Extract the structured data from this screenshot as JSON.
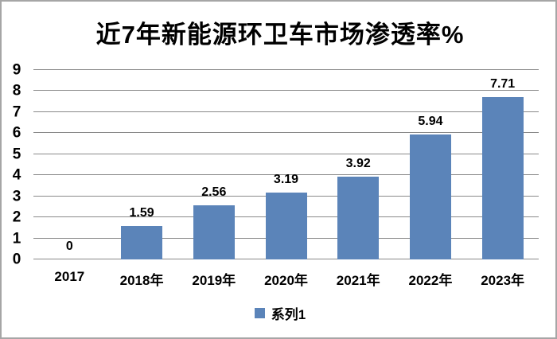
{
  "frame": {
    "border_color": "#a6a6a6",
    "background_color": "#ffffff"
  },
  "chart_data": {
    "type": "bar",
    "title": "近7年新能源环卫车市场渗透率%",
    "categories": [
      "2017",
      "2018年",
      "2019年",
      "2020年",
      "2021年",
      "2022年",
      "2023年"
    ],
    "series": [
      {
        "name": "系列1",
        "values": [
          0,
          1.59,
          2.56,
          3.19,
          3.92,
          5.94,
          7.71
        ]
      }
    ],
    "value_labels": [
      "0",
      "1.59",
      "2.56",
      "3.19",
      "3.92",
      "5.94",
      "7.71"
    ],
    "xlabel": "",
    "ylabel": "",
    "ylim": [
      0,
      9
    ],
    "ytick_step": 1,
    "ytick_labels": [
      "0",
      "1",
      "2",
      "3",
      "4",
      "5",
      "6",
      "7",
      "8",
      "9"
    ],
    "grid": true,
    "legend_position": "bottom",
    "bar_color": "#5B84B9",
    "gridline_color": "#898989",
    "text_color": "#000000"
  },
  "legend": {
    "label": "系列1"
  }
}
